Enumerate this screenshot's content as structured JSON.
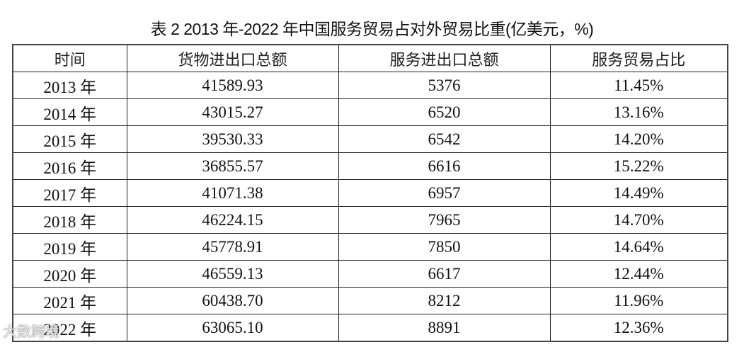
{
  "title": "表 2 2013 年-2022 年中国服务贸易占对外贸易比重(亿美元，%)",
  "table": {
    "headers": [
      "时间",
      "货物进出口总额",
      "服务进出口总额",
      "服务贸易占比"
    ],
    "rows": [
      [
        "2013 年",
        "41589.93",
        "5376",
        "11.45%"
      ],
      [
        "2014 年",
        "43015.27",
        "6520",
        "13.16%"
      ],
      [
        "2015 年",
        "39530.33",
        "6542",
        "14.20%"
      ],
      [
        "2016 年",
        "36855.57",
        "6616",
        "15.22%"
      ],
      [
        "2017 年",
        "41071.38",
        "6957",
        "14.49%"
      ],
      [
        "2018 年",
        "46224.15",
        "7965",
        "14.70%"
      ],
      [
        "2019 年",
        "45778.91",
        "7850",
        "14.64%"
      ],
      [
        "2020 年",
        "46559.13",
        "6617",
        "12.44%"
      ],
      [
        "2021 年",
        "60438.70",
        "8212",
        "11.96%"
      ],
      [
        "2022 年",
        "63065.10",
        "8891",
        "12.36%"
      ]
    ]
  },
  "watermark": "大数跨境"
}
